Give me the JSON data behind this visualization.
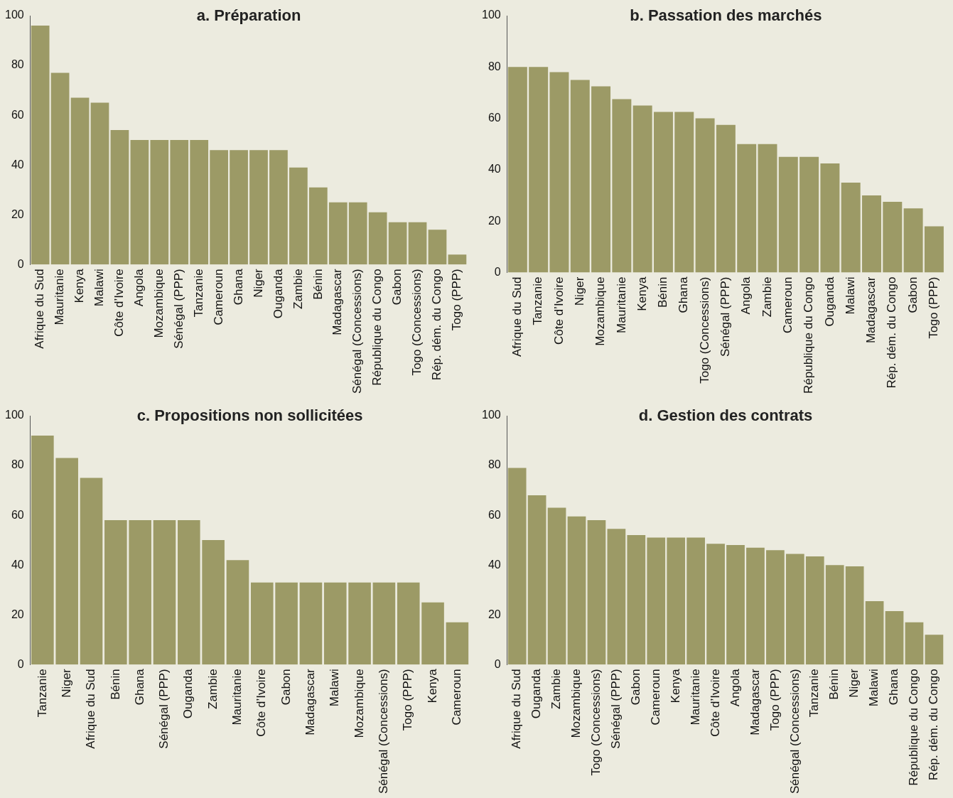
{
  "chart_data": [
    {
      "type": "bar",
      "title": "a. Préparation",
      "categories": [
        "Afrique du Sud",
        "Mauritanie",
        "Kenya",
        "Malawi",
        "Côte d’Ivoire",
        "Angola",
        "Mozambique",
        "Sénégal (PPP)",
        "Tanzanie",
        "Cameroun",
        "Ghana",
        "Niger",
        "Ouganda",
        "Zambie",
        "Bénin",
        "Madagascar",
        "Sénégal (Concessions)",
        "République du Congo",
        "Gabon",
        "Togo (Concessions)",
        "Rép. dém. du Congo",
        "Togo (PPP)"
      ],
      "values": [
        96,
        77,
        67,
        65,
        54,
        50,
        50,
        50,
        50,
        46,
        46,
        46,
        46,
        39,
        31,
        25,
        25,
        21,
        17,
        17,
        14,
        4
      ],
      "color": "#9c9a66",
      "ylim": [
        0,
        100
      ],
      "yticks": [
        0,
        20,
        40,
        60,
        80,
        100
      ]
    },
    {
      "type": "bar",
      "title": "b. Passation des marchés",
      "categories": [
        "Afrique du Sud",
        "Tanzanie",
        "Côte d’Ivoire",
        "Niger",
        "Mozambique",
        "Mauritanie",
        "Kenya",
        "Bénin",
        "Ghana",
        "Togo (Concessions)",
        "Sénégal (PPP)",
        "Angola",
        "Zambie",
        "Cameroun",
        "République du Congo",
        "Ouganda",
        "Malawi",
        "Madagascar",
        "Rép. dém. du Congo",
        "Gabon",
        "Togo (PPP)"
      ],
      "values": [
        80,
        80,
        78,
        75,
        72.5,
        67.5,
        65,
        62.5,
        62.5,
        60,
        57.5,
        50,
        50,
        45,
        45,
        42.5,
        35,
        30,
        27.5,
        25,
        18
      ],
      "color": "#9c9a66",
      "ylim": [
        0,
        100
      ],
      "yticks": [
        0,
        20,
        40,
        60,
        80,
        100
      ]
    },
    {
      "type": "bar",
      "title": "c. Propositions non sollicitées",
      "categories": [
        "Tanzanie",
        "Niger",
        "Afrique du Sud",
        "Bénin",
        "Ghana",
        "Sénégal (PPP)",
        "Ouganda",
        "Zambie",
        "Mauritanie",
        "Côte d’Ivoire",
        "Gabon",
        "Madagascar",
        "Malawi",
        "Mozambique",
        "Sénégal (Concessions)",
        "Togo (PPP)",
        "Kenya",
        "Cameroun"
      ],
      "values": [
        92,
        83,
        75,
        58,
        58,
        58,
        58,
        50,
        42,
        33,
        33,
        33,
        33,
        33,
        33,
        33,
        25,
        17
      ],
      "color": "#9c9a66",
      "ylim": [
        0,
        100
      ],
      "yticks": [
        0,
        20,
        40,
        60,
        80,
        100
      ]
    },
    {
      "type": "bar",
      "title": "d. Gestion des contrats",
      "categories": [
        "Afrique du Sud",
        "Ouganda",
        "Zambie",
        "Mozambique",
        "Togo (Concessions)",
        "Sénégal (PPP)",
        "Gabon",
        "Cameroun",
        "Kenya",
        "Mauritanie",
        "Côte d’Ivoire",
        "Angola",
        "Madagascar",
        "Togo (PPP)",
        "Sénégal (Concessions)",
        "Tanzanie",
        "Bénin",
        "Niger",
        "Malawi",
        "Ghana",
        "République du Congo",
        "Rép. dém. du Congo"
      ],
      "values": [
        79,
        68,
        63,
        59.5,
        58,
        54.5,
        52,
        51,
        51,
        51,
        48.5,
        48,
        47,
        46,
        44.5,
        43.5,
        40,
        39.5,
        25.5,
        21.5,
        17,
        12
      ],
      "color": "#9c9a66",
      "ylim": [
        0,
        100
      ],
      "yticks": [
        0,
        20,
        40,
        60,
        80,
        100
      ]
    }
  ]
}
